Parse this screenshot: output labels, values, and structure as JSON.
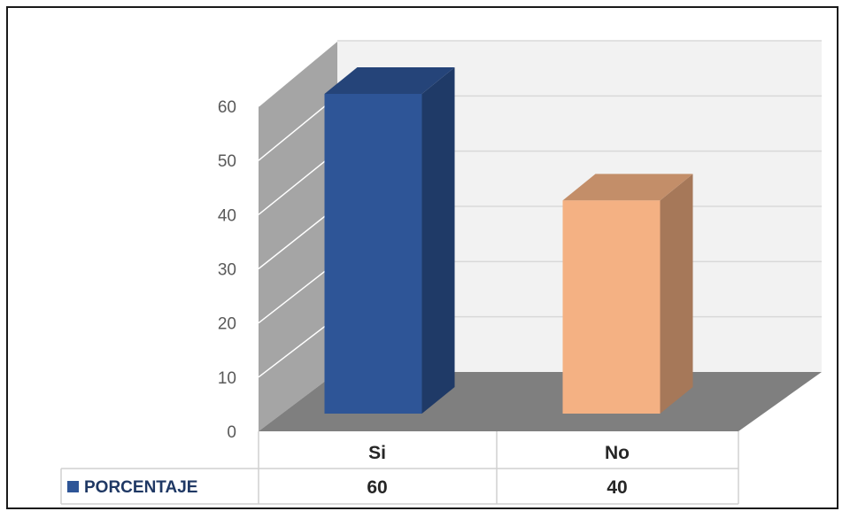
{
  "chart_data": {
    "type": "bar",
    "style": "3d-column-with-data-table",
    "categories": [
      "Si",
      "No"
    ],
    "series": [
      {
        "name": "PORCENTAJE",
        "values": [
          60,
          40
        ]
      }
    ],
    "value_labels": [
      "60",
      "40"
    ],
    "bar_colors": [
      "#2e5597",
      "#f4b183"
    ],
    "legend_color": "#2e5597",
    "ylim": [
      0,
      60
    ],
    "yticks": [
      "0",
      "10",
      "20",
      "30",
      "40",
      "50",
      "60"
    ],
    "grid": true,
    "title": "",
    "xlabel": "",
    "ylabel": ""
  }
}
